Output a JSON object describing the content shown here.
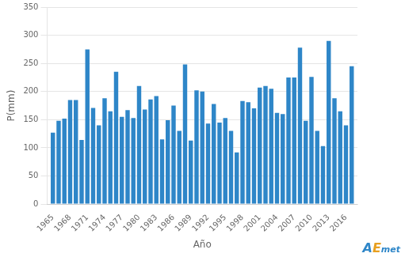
{
  "chart_data": {
    "type": "bar",
    "x": [
      1965,
      1966,
      1967,
      1968,
      1969,
      1970,
      1971,
      1972,
      1973,
      1974,
      1975,
      1976,
      1977,
      1978,
      1979,
      1980,
      1981,
      1982,
      1983,
      1984,
      1985,
      1986,
      1987,
      1988,
      1989,
      1990,
      1991,
      1992,
      1993,
      1994,
      1995,
      1996,
      1997,
      1998,
      1999,
      2000,
      2001,
      2002,
      2003,
      2004,
      2005,
      2006,
      2007,
      2008,
      2009,
      2010,
      2011,
      2012,
      2013,
      2014,
      2015,
      2016,
      2017
    ],
    "values": [
      127,
      148,
      152,
      185,
      185,
      114,
      275,
      171,
      140,
      188,
      165,
      235,
      155,
      167,
      153,
      210,
      168,
      186,
      192,
      115,
      149,
      175,
      130,
      248,
      113,
      202,
      200,
      143,
      178,
      145,
      153,
      130,
      92,
      183,
      181,
      170,
      207,
      210,
      205,
      162,
      160,
      225,
      225,
      278,
      148,
      226,
      130,
      103,
      290,
      188,
      165,
      140,
      245
    ],
    "color": "#2e86c8",
    "xlabel": "Año",
    "ylabel": "P(mm)",
    "xlim": [
      1964,
      2018
    ],
    "xticks": [
      1965,
      1968,
      1971,
      1974,
      1977,
      1980,
      1983,
      1986,
      1989,
      1992,
      1995,
      1998,
      2001,
      2004,
      2007,
      2010,
      2013,
      2016
    ],
    "ylim": [
      0,
      350
    ],
    "yticks": [
      0,
      50,
      100,
      150,
      200,
      250,
      300,
      350
    ],
    "grid": "y",
    "annotations": [
      {
        "text": "A",
        "color": "#2e86c8"
      },
      {
        "text": "E",
        "color": "#e8a020"
      },
      {
        "text": "met",
        "color": "#2e86c8"
      }
    ]
  }
}
